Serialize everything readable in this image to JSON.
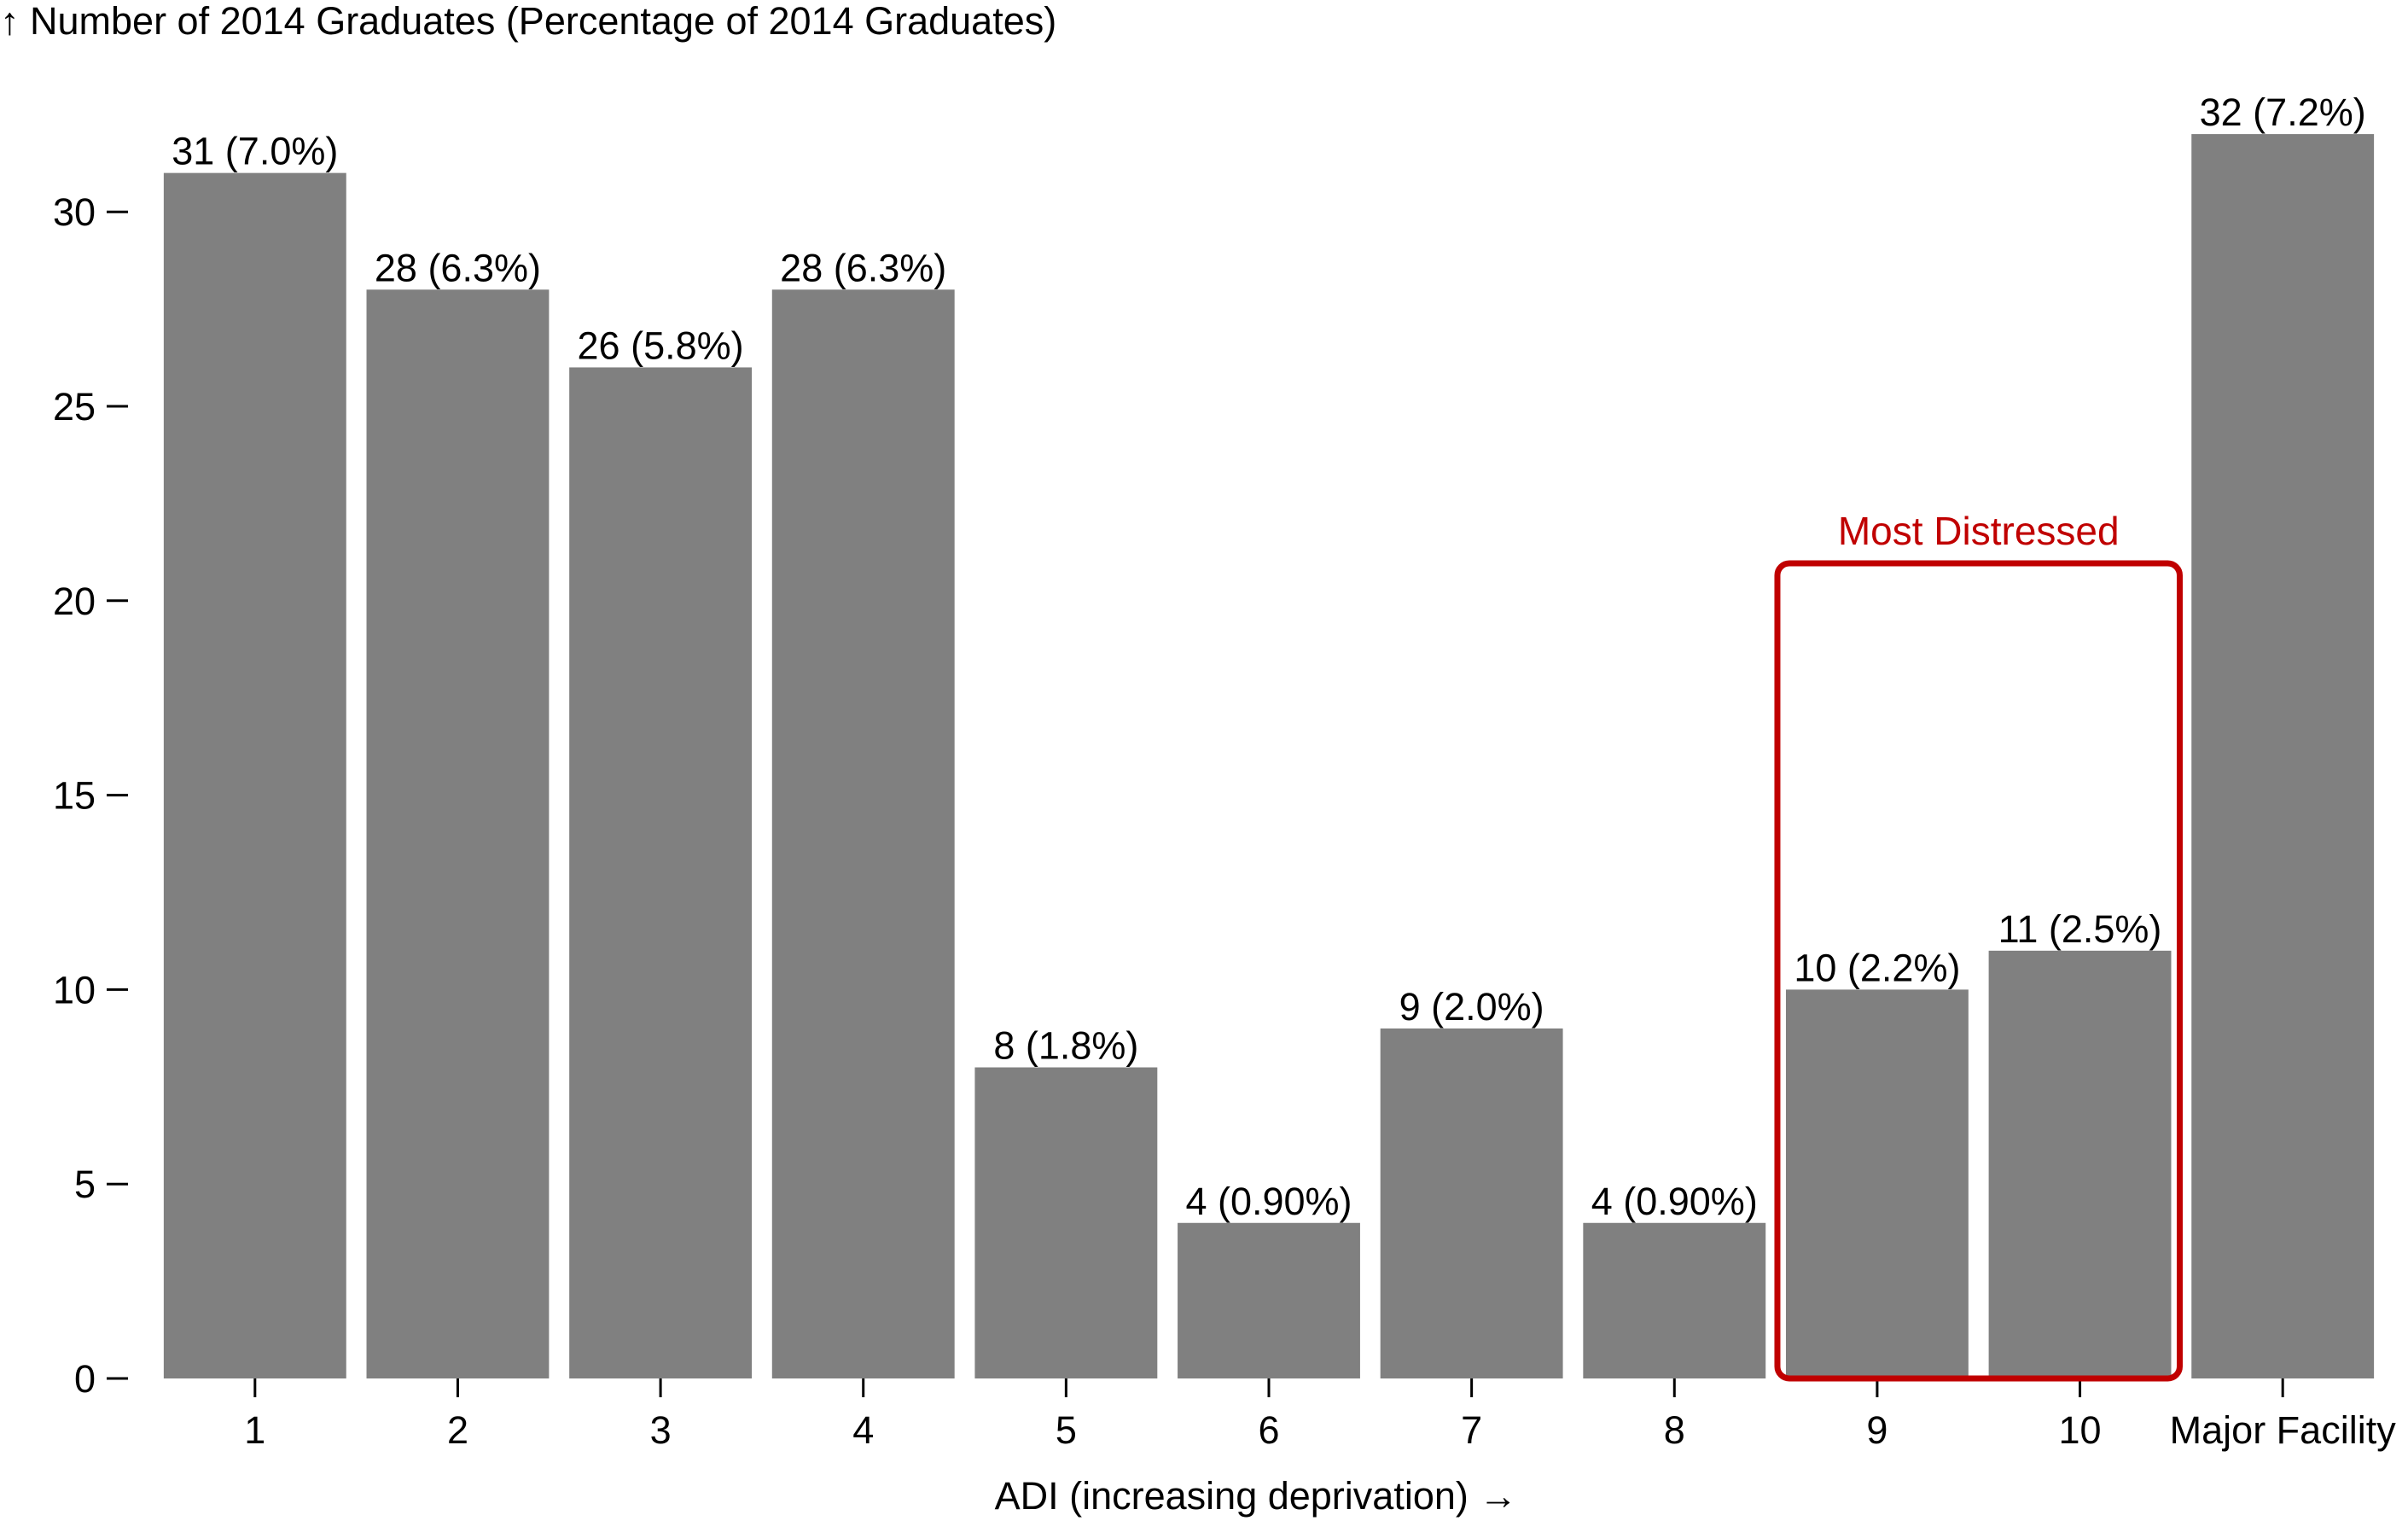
{
  "chart_data": {
    "type": "bar",
    "ylabel": "↑ Number of 2014 Graduates (Percentage of 2014 Graduates)",
    "xlabel": "ADI (increasing deprivation) →",
    "categories": [
      "1",
      "2",
      "3",
      "4",
      "5",
      "6",
      "7",
      "8",
      "9",
      "10",
      "Major Facility"
    ],
    "values": [
      31,
      28,
      26,
      28,
      8,
      4,
      9,
      4,
      10,
      11,
      32
    ],
    "labels": [
      "31 (7.0%)",
      "28 (6.3%)",
      "26 (5.8%)",
      "28 (6.3%)",
      "8 (1.8%)",
      "4 (0.90%)",
      "9 (2.0%)",
      "4 (0.90%)",
      "10 (2.2%)",
      "11 (2.5%)",
      "32 (7.2%)"
    ],
    "ylim": [
      0,
      32
    ],
    "yticks": [
      0,
      5,
      10,
      15,
      20,
      25,
      30
    ],
    "bar_color": "#808080",
    "grid": false,
    "annotation": {
      "text": "Most Distressed",
      "color": "#c00000",
      "categories": [
        "9",
        "10"
      ]
    }
  }
}
